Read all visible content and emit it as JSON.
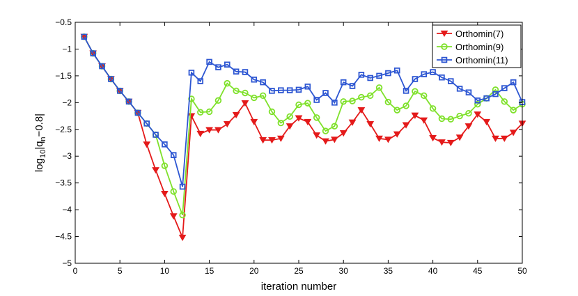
{
  "chart_data": {
    "type": "line",
    "title": "",
    "xlabel": "iteration number",
    "ylabel": {
      "prefix": "log",
      "sub1": "10",
      "mid": "|q",
      "sub2": "n",
      "suffix": "−0.8|"
    },
    "xlim": [
      0,
      50
    ],
    "ylim": [
      -5,
      -0.5
    ],
    "xticks": [
      0,
      5,
      10,
      15,
      20,
      25,
      30,
      35,
      40,
      45,
      50
    ],
    "yticks": [
      -5,
      -4.5,
      -4,
      -3.5,
      -3,
      -2.5,
      -2,
      -1.5,
      -1,
      -0.5
    ],
    "grid": false,
    "legend_position": "top-right",
    "x": [
      1,
      2,
      3,
      4,
      5,
      6,
      7,
      8,
      9,
      10,
      11,
      12,
      13,
      14,
      15,
      16,
      17,
      18,
      19,
      20,
      21,
      22,
      23,
      24,
      25,
      26,
      27,
      28,
      29,
      30,
      31,
      32,
      33,
      34,
      35,
      36,
      37,
      38,
      39,
      40,
      41,
      42,
      43,
      44,
      45,
      46,
      47,
      48,
      49,
      50
    ],
    "series": [
      {
        "name": "Orthomin(7)",
        "color": "#e41a1a",
        "marker": "triangle-down",
        "values": [
          -0.77,
          -1.08,
          -1.32,
          -1.56,
          -1.78,
          -1.98,
          -2.19,
          -2.78,
          -3.26,
          -3.7,
          -4.12,
          -4.52,
          -2.25,
          -2.58,
          -2.51,
          -2.51,
          -2.4,
          -2.23,
          -2.01,
          -2.36,
          -2.7,
          -2.7,
          -2.67,
          -2.44,
          -2.29,
          -2.36,
          -2.61,
          -2.72,
          -2.69,
          -2.57,
          -2.37,
          -2.14,
          -2.4,
          -2.67,
          -2.69,
          -2.59,
          -2.42,
          -2.24,
          -2.33,
          -2.66,
          -2.74,
          -2.75,
          -2.65,
          -2.44,
          -2.22,
          -2.36,
          -2.67,
          -2.67,
          -2.56,
          -2.39
        ]
      },
      {
        "name": "Orthomin(9)",
        "color": "#7fe12b",
        "marker": "circle",
        "values": [
          -0.77,
          -1.08,
          -1.32,
          -1.56,
          -1.78,
          -1.98,
          -2.19,
          -2.39,
          -2.6,
          -3.18,
          -3.66,
          -4.1,
          -1.93,
          -2.18,
          -2.17,
          -1.96,
          -1.64,
          -1.78,
          -1.82,
          -1.91,
          -1.87,
          -2.17,
          -2.38,
          -2.26,
          -2.04,
          -2.01,
          -2.28,
          -2.53,
          -2.44,
          -1.98,
          -1.97,
          -1.9,
          -1.87,
          -1.72,
          -1.99,
          -2.14,
          -2.06,
          -1.79,
          -1.87,
          -2.11,
          -2.3,
          -2.31,
          -2.25,
          -2.2,
          -2.03,
          -1.92,
          -1.76,
          -1.98,
          -2.14,
          -2.03
        ]
      },
      {
        "name": "Orthomin(11)",
        "color": "#2d56d2",
        "marker": "square",
        "values": [
          -0.77,
          -1.08,
          -1.32,
          -1.56,
          -1.78,
          -1.98,
          -2.19,
          -2.39,
          -2.6,
          -2.78,
          -2.98,
          -3.57,
          -1.44,
          -1.6,
          -1.24,
          -1.34,
          -1.29,
          -1.42,
          -1.43,
          -1.57,
          -1.62,
          -1.78,
          -1.77,
          -1.77,
          -1.76,
          -1.7,
          -1.95,
          -1.82,
          -2.0,
          -1.62,
          -1.69,
          -1.48,
          -1.54,
          -1.5,
          -1.45,
          -1.4,
          -1.78,
          -1.56,
          -1.47,
          -1.43,
          -1.53,
          -1.6,
          -1.74,
          -1.81,
          -1.96,
          -1.92,
          -1.84,
          -1.73,
          -1.62,
          -1.99
        ]
      }
    ]
  }
}
